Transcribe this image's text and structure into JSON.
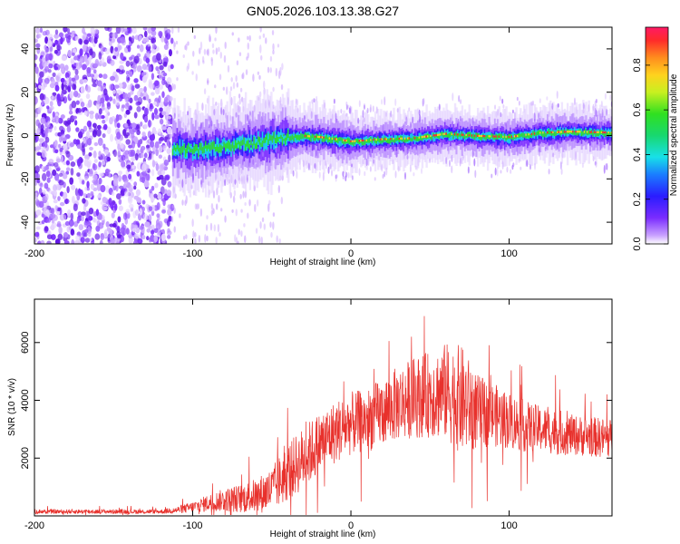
{
  "title": "GN05.2026.103.13.38.G27",
  "colors": {
    "snr_line": "#e8312c",
    "purple": "#7a2cff",
    "spectrum_core": "#ff2a2a"
  },
  "chart_data": [
    {
      "type": "heatmap",
      "xlabel": "Height of straight line (km)",
      "ylabel": "Frequency (Hz)",
      "xlim": [
        -200,
        165
      ],
      "ylim": [
        -50,
        50
      ],
      "x_ticks": [
        -200,
        -100,
        0,
        100
      ],
      "y_ticks": [
        -40,
        -20,
        0,
        20,
        40
      ],
      "colorbar": {
        "label": "Normalized spectral amplitude",
        "range": [
          0.0,
          0.97
        ],
        "ticks": [
          "0.0",
          "0.2",
          "0.4",
          "0.6",
          "0.8"
        ],
        "colormap": "rainbow (purple to red)"
      },
      "features": {
        "noise_region_x": [
          -200,
          -113
        ],
        "signal_start_x": -113,
        "signal_trace": {
          "x": [
            -113,
            -100,
            -90,
            -80,
            -70,
            -60,
            -50,
            -40,
            -30,
            -20,
            -10,
            0,
            20,
            40,
            60,
            80,
            100,
            120,
            140,
            165
          ],
          "freq": [
            -6,
            -7,
            -6,
            -5,
            -4,
            -3,
            -2,
            -1,
            -0.5,
            -1,
            -2,
            -3,
            -2,
            -1.5,
            0.5,
            -0.5,
            -1,
            1,
            1.5,
            1
          ]
        }
      },
      "grid": false
    },
    {
      "type": "line",
      "xlabel": "Height of straight line (km)",
      "ylabel": "SNR (10 * v/v)",
      "xlim": [
        -200,
        165
      ],
      "ylim": [
        0,
        7500
      ],
      "x_ticks": [
        -200,
        -100,
        0,
        100
      ],
      "y_ticks": [
        2000,
        4000,
        6000
      ],
      "envelope": {
        "x": [
          -200,
          -160,
          -120,
          -110,
          -100,
          -90,
          -80,
          -70,
          -60,
          -50,
          -40,
          -30,
          -20,
          -10,
          0,
          10,
          20,
          30,
          40,
          50,
          60,
          70,
          80,
          90,
          100,
          110,
          120,
          130,
          140,
          150,
          160,
          165
        ],
        "mean": [
          150,
          150,
          150,
          200,
          300,
          450,
          550,
          600,
          700,
          900,
          1500,
          2000,
          2500,
          2900,
          3200,
          3300,
          3600,
          3900,
          4100,
          4200,
          4300,
          4000,
          3600,
          3500,
          3300,
          3100,
          3000,
          2900,
          2800,
          2750,
          2700,
          2650
        ],
        "spread": [
          80,
          80,
          80,
          120,
          200,
          300,
          400,
          500,
          600,
          800,
          1000,
          1100,
          1100,
          1100,
          1100,
          1100,
          1200,
          1300,
          1400,
          1500,
          1700,
          1900,
          1300,
          1100,
          1000,
          900,
          800,
          800,
          700,
          700,
          700,
          700
        ]
      },
      "grid": false
    }
  ]
}
